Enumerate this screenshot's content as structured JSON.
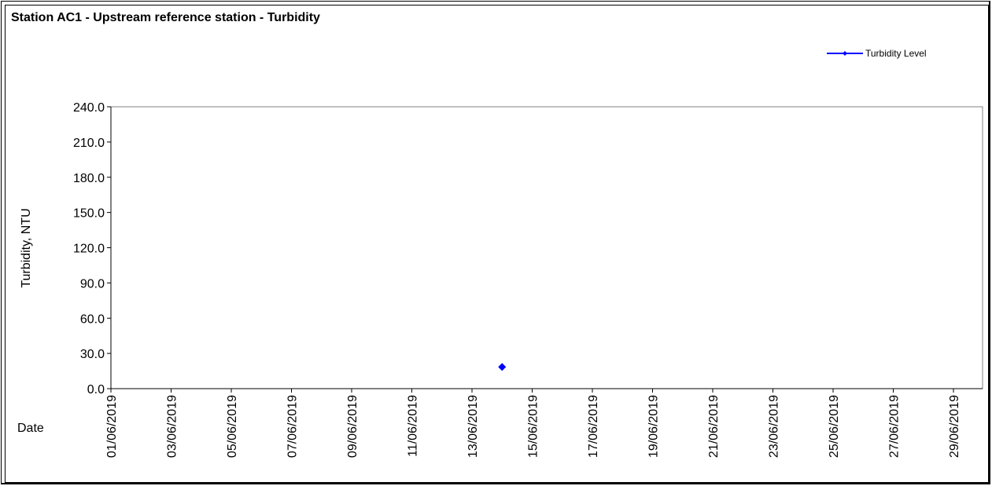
{
  "chart_data": {
    "type": "line",
    "title": "Station AC1 - Upstream reference station - Turbidity",
    "ylabel": "Turbidity, NTU",
    "xlabel": "Date",
    "ylim": [
      0,
      240
    ],
    "y_ticks": [
      "0.0",
      "30.0",
      "60.0",
      "90.0",
      "120.0",
      "150.0",
      "180.0",
      "210.0",
      "240.0"
    ],
    "x_ticks": [
      "01/06/2019",
      "03/06/2019",
      "05/06/2019",
      "07/06/2019",
      "09/06/2019",
      "11/06/2019",
      "13/06/2019",
      "15/06/2019",
      "17/06/2019",
      "19/06/2019",
      "21/06/2019",
      "23/06/2019",
      "25/06/2019",
      "27/06/2019",
      "29/06/2019"
    ],
    "grid": false,
    "legend_position": "top-right",
    "series": [
      {
        "name": "Turbidity Level",
        "color": "#0000ff",
        "marker": "diamond",
        "points": [
          {
            "x": "14/06/2019",
            "y": 18.5
          }
        ]
      }
    ]
  }
}
